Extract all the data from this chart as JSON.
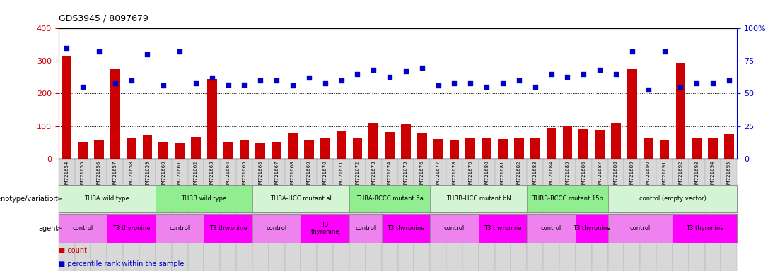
{
  "title": "GDS3945 / 8097679",
  "samples": [
    "GSM721654",
    "GSM721655",
    "GSM721656",
    "GSM721657",
    "GSM721658",
    "GSM721659",
    "GSM721660",
    "GSM721661",
    "GSM721662",
    "GSM721663",
    "GSM721664",
    "GSM721665",
    "GSM721666",
    "GSM721667",
    "GSM721668",
    "GSM721669",
    "GSM721670",
    "GSM721671",
    "GSM721672",
    "GSM721673",
    "GSM721674",
    "GSM721675",
    "GSM721676",
    "GSM721677",
    "GSM721678",
    "GSM721679",
    "GSM721680",
    "GSM721681",
    "GSM721682",
    "GSM721683",
    "GSM721684",
    "GSM721685",
    "GSM721686",
    "GSM721687",
    "GSM721688",
    "GSM721689",
    "GSM721690",
    "GSM721691",
    "GSM721692",
    "GSM721693",
    "GSM721694",
    "GSM721695"
  ],
  "counts": [
    315,
    52,
    57,
    275,
    65,
    70,
    52,
    50,
    67,
    245,
    52,
    55,
    50,
    52,
    78,
    55,
    62,
    85,
    65,
    110,
    82,
    107,
    78,
    60,
    57,
    62,
    62,
    60,
    62,
    65,
    92,
    100,
    90,
    88,
    110,
    275,
    62,
    58,
    295,
    62,
    62,
    75
  ],
  "percentile": [
    85,
    55,
    82,
    58,
    60,
    80,
    56,
    82,
    58,
    62,
    57,
    57,
    60,
    60,
    56,
    62,
    58,
    60,
    65,
    68,
    63,
    67,
    70,
    56,
    58,
    58,
    55,
    58,
    60,
    55,
    65,
    63,
    65,
    68,
    65,
    82,
    53,
    82,
    55,
    58,
    58,
    60
  ],
  "genotype_groups": [
    {
      "label": "THRA wild type",
      "start": 0,
      "end": 5
    },
    {
      "label": "THRB wild type",
      "start": 6,
      "end": 11
    },
    {
      "label": "THRA-HCC mutant al",
      "start": 12,
      "end": 17
    },
    {
      "label": "THRA-RCCC mutant 6a",
      "start": 18,
      "end": 22
    },
    {
      "label": "THRB-HCC mutant bN",
      "start": 23,
      "end": 28
    },
    {
      "label": "THRB-RCCC mutant 15b",
      "start": 29,
      "end": 33
    },
    {
      "label": "control (empty vector)",
      "start": 34,
      "end": 41
    }
  ],
  "agent_groups": [
    {
      "label": "control",
      "start": 0,
      "end": 2,
      "is_control": true
    },
    {
      "label": "T3 thyronine",
      "start": 3,
      "end": 5,
      "is_control": false
    },
    {
      "label": "control",
      "start": 6,
      "end": 8,
      "is_control": true
    },
    {
      "label": "T3 thyronine",
      "start": 9,
      "end": 11,
      "is_control": false
    },
    {
      "label": "control",
      "start": 12,
      "end": 14,
      "is_control": true
    },
    {
      "label": "T3\nthyronine",
      "start": 15,
      "end": 17,
      "is_control": false
    },
    {
      "label": "control",
      "start": 18,
      "end": 19,
      "is_control": true
    },
    {
      "label": "T3 thyronine",
      "start": 20,
      "end": 22,
      "is_control": false
    },
    {
      "label": "control",
      "start": 23,
      "end": 25,
      "is_control": true
    },
    {
      "label": "T3 thyronine",
      "start": 26,
      "end": 28,
      "is_control": false
    },
    {
      "label": "control",
      "start": 29,
      "end": 31,
      "is_control": true
    },
    {
      "label": "T3 thyronine",
      "start": 32,
      "end": 33,
      "is_control": false
    },
    {
      "label": "control",
      "start": 34,
      "end": 37,
      "is_control": true
    },
    {
      "label": "T3 thyronine",
      "start": 38,
      "end": 41,
      "is_control": false
    }
  ],
  "bar_color": "#CC0000",
  "scatter_color": "#0000CC",
  "left_ylim": [
    0,
    400
  ],
  "right_ylim": [
    0,
    100
  ],
  "left_yticks": [
    0,
    100,
    200,
    300,
    400
  ],
  "right_ytick_vals": [
    0,
    25,
    50,
    75,
    100
  ],
  "right_ytick_labels": [
    "0",
    "25",
    "50",
    "75",
    "100%"
  ],
  "hline_values": [
    100,
    200,
    300
  ],
  "geno_color_light": "#d4f5d4",
  "geno_color_dark": "#90EE90",
  "control_color": "#EE82EE",
  "t3_color": "#FF00FF",
  "tick_bg_color": "#d8d8d8",
  "legend_count_label": "count",
  "legend_pct_label": "percentile rank within the sample"
}
